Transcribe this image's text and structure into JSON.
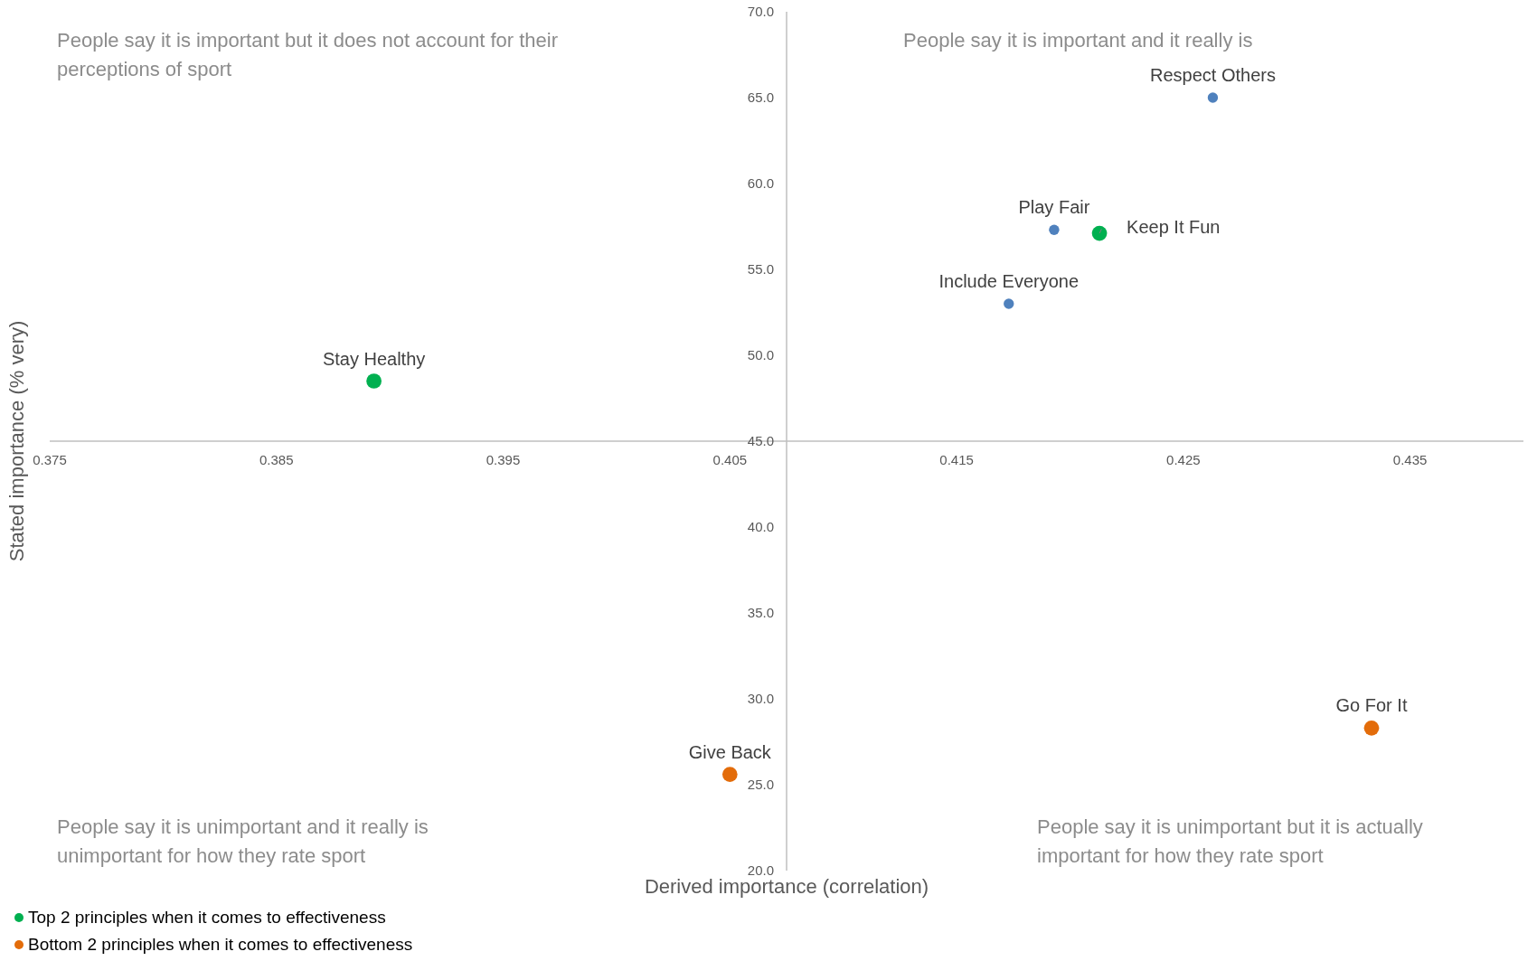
{
  "chart_data": {
    "type": "scatter",
    "xlabel": "Derived importance (correlation)",
    "ylabel": "Stated importance (% very)",
    "xlim": [
      0.375,
      0.44
    ],
    "xticks": [
      0.375,
      0.385,
      0.395,
      0.405,
      0.415,
      0.425,
      0.435
    ],
    "ylim": [
      20,
      70
    ],
    "yticks": [
      {
        "value": 20,
        "label": "20.0"
      },
      {
        "value": 25,
        "label": "25.0"
      },
      {
        "value": 30,
        "label": "30.0"
      },
      {
        "value": 35,
        "label": "35.0"
      },
      {
        "value": 40,
        "label": "40.0"
      },
      {
        "value": 45,
        "label": "45.0"
      },
      {
        "value": 50,
        "label": "50.0"
      },
      {
        "value": 55,
        "label": "55.0"
      },
      {
        "value": 60,
        "label": "60.0"
      },
      {
        "value": 65,
        "label": "65.0"
      },
      {
        "value": 70,
        "label": "70.0"
      }
    ],
    "series": [
      {
        "color": "#4f81bd",
        "x": [
          0.4263,
          0.4193,
          0.4173
        ],
        "values": [
          65.0,
          57.3,
          53.0
        ]
      },
      {
        "name": "Top 2 principles when it comes to effectiveness",
        "color": "#00b050",
        "x": [
          0.3893,
          0.4213
        ],
        "values": [
          48.5,
          57.1
        ]
      },
      {
        "name": "Bottom 2 principles when it comes to effectiveness",
        "color": "#e36c0a",
        "x": [
          0.405,
          0.4333
        ],
        "values": [
          25.6,
          28.3
        ]
      }
    ],
    "annotations": [
      {
        "text": "Respect Others",
        "x": 0.4263,
        "y": 65.0
      },
      {
        "text": "Play Fair",
        "x": 0.4193,
        "y": 57.3
      },
      {
        "text": "Keep It Fun",
        "x": 0.4213,
        "y": 57.1
      },
      {
        "text": "Include Everyone",
        "x": 0.4173,
        "y": 53.0
      },
      {
        "text": "Stay Healthy",
        "x": 0.3893,
        "y": 48.5
      },
      {
        "text": "Give Back",
        "x": 0.405,
        "y": 25.6
      },
      {
        "text": "Go For It",
        "x": 0.4333,
        "y": 28.3
      },
      "People say it is important but it does not account for their\nperceptions of sport",
      "People say it is important and it really is",
      "People say it is unimportant and it really is\nunimportant for how they rate sport",
      "People say it is unimportant but it is actually\nimportant for how they rate sport"
    ],
    "marker": "circle",
    "grid": false,
    "legend": "bottom"
  }
}
